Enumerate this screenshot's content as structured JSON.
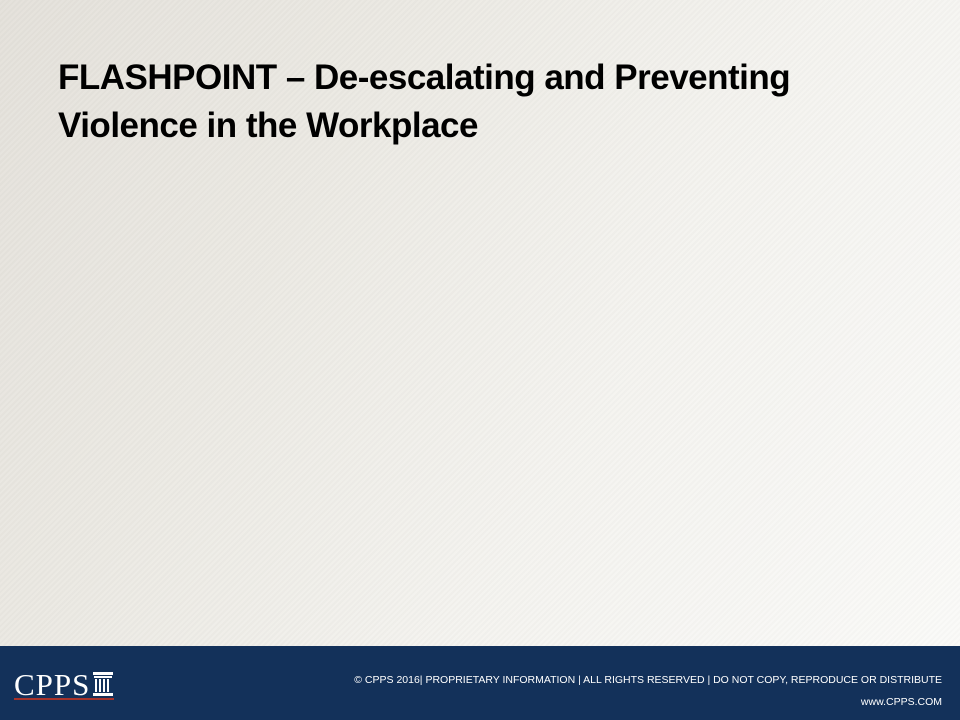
{
  "slide": {
    "title_line1": "FLASHPOINT – De-escalating and Preventing",
    "title_line2": "Violence in the Workplace"
  },
  "footer": {
    "logo_text": "CPPS",
    "copyright": "© CPPS 2016| PROPRIETARY INFORMATION | ALL RIGHTS RESERVED | DO NOT COPY, REPRODUCE OR DISTRIBUTE",
    "website": "www.CPPS.COM"
  },
  "colors": {
    "footer_bg": "#13315a",
    "logo_underline": "#a8332b",
    "title_text": "#000000"
  }
}
